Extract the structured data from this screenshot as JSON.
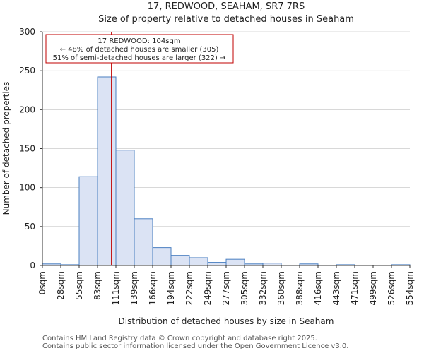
{
  "chart_data": {
    "type": "bar",
    "title": "17, REDWOOD, SEAHAM, SR7 7RS",
    "subtitle": "Size of property relative to detached houses in Seaham",
    "xlabel": "Distribution of detached houses by size in Seaham",
    "ylabel": "Number of detached properties",
    "ylim": [
      0,
      300
    ],
    "yticks": [
      0,
      50,
      100,
      150,
      200,
      250,
      300
    ],
    "grid": true,
    "bin_edges": [
      0,
      27.7,
      55.4,
      83.1,
      110.8,
      138.5,
      166.2,
      193.9,
      221.6,
      249.3,
      277,
      304.7,
      332.4,
      360.1,
      387.8,
      415.5,
      443.2,
      470.9,
      498.6,
      526.3,
      554
    ],
    "tick_labels": [
      "0sqm",
      "28sqm",
      "55sqm",
      "83sqm",
      "111sqm",
      "139sqm",
      "166sqm",
      "194sqm",
      "222sqm",
      "249sqm",
      "277sqm",
      "305sqm",
      "332sqm",
      "360sqm",
      "388sqm",
      "416sqm",
      "443sqm",
      "471sqm",
      "499sqm",
      "526sqm",
      "554sqm"
    ],
    "values": [
      2,
      1,
      114,
      242,
      148,
      60,
      23,
      13,
      10,
      4,
      8,
      2,
      3,
      0,
      2,
      0,
      1,
      0,
      0,
      1
    ],
    "marker_value": 104,
    "marker_color": "#c00000",
    "bar_fill": "#dbe3f4",
    "bar_edge": "#4a7fc1",
    "annotation": {
      "lines": [
        "17 REDWOOD: 104sqm",
        "← 48% of detached houses are smaller (305)",
        "51% of semi-detached houses are larger (322) →"
      ]
    }
  },
  "footer": {
    "line1": "Contains HM Land Registry data © Crown copyright and database right 2025.",
    "line2": "Contains public sector information licensed under the Open Government Licence v3.0."
  }
}
